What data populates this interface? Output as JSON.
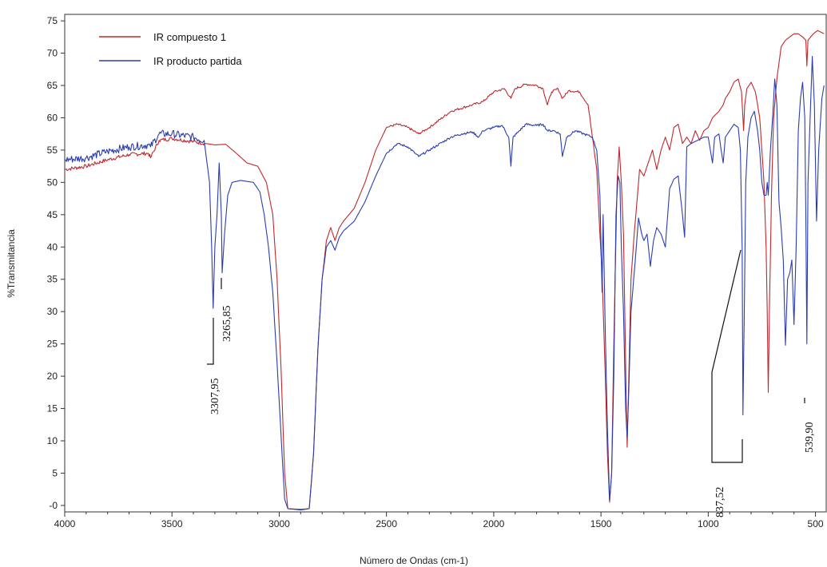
{
  "chart_data": {
    "type": "line",
    "xlabel": "Número de Ondas (cm-1)",
    "ylabel": "%Transmitancia",
    "xlim": [
      4000,
      450
    ],
    "ylim": [
      -1,
      76
    ],
    "x_ticks": [
      4000,
      3500,
      3000,
      2500,
      2000,
      1500,
      1000,
      500
    ],
    "x_tick_labels": [
      "4000",
      "3500",
      "3000",
      "2500",
      "2000",
      "1500",
      "1000",
      "500"
    ],
    "y_ticks": [
      0,
      5,
      10,
      15,
      20,
      25,
      30,
      35,
      40,
      45,
      50,
      55,
      60,
      65,
      70,
      75
    ],
    "y_tick_labels": [
      "-0",
      "5",
      "10",
      "15",
      "20",
      "25",
      "30",
      "35",
      "40",
      "45",
      "50",
      "55",
      "60",
      "65",
      "70",
      "75"
    ],
    "grid": false,
    "legend_position": "top-left",
    "series": [
      {
        "name": "IR compuesto 1",
        "color": "#c0282d",
        "points": [
          [
            4000,
            52
          ],
          [
            3900,
            52.5
          ],
          [
            3800,
            53.5
          ],
          [
            3700,
            54.3
          ],
          [
            3610,
            54.5
          ],
          [
            3600,
            53.8
          ],
          [
            3560,
            56.5
          ],
          [
            3500,
            56.8
          ],
          [
            3400,
            56.3
          ],
          [
            3300,
            55.8
          ],
          [
            3250,
            55.9
          ],
          [
            3200,
            54.5
          ],
          [
            3150,
            53
          ],
          [
            3100,
            52.5
          ],
          [
            3060,
            50
          ],
          [
            3030,
            45
          ],
          [
            3010,
            35
          ],
          [
            2990,
            20
          ],
          [
            2975,
            5
          ],
          [
            2960,
            -0.5
          ],
          [
            2900,
            -0.6
          ],
          [
            2860,
            -0.5
          ],
          [
            2840,
            8
          ],
          [
            2820,
            24
          ],
          [
            2800,
            35
          ],
          [
            2780,
            41
          ],
          [
            2760,
            43
          ],
          [
            2740,
            41
          ],
          [
            2720,
            43
          ],
          [
            2700,
            44
          ],
          [
            2650,
            46
          ],
          [
            2600,
            50
          ],
          [
            2550,
            55
          ],
          [
            2500,
            58.5
          ],
          [
            2450,
            59
          ],
          [
            2400,
            58.5
          ],
          [
            2350,
            57.5
          ],
          [
            2300,
            58.5
          ],
          [
            2200,
            61
          ],
          [
            2100,
            62
          ],
          [
            2050,
            62.5
          ],
          [
            2000,
            64
          ],
          [
            1950,
            64.5
          ],
          [
            1920,
            63
          ],
          [
            1900,
            64.5
          ],
          [
            1850,
            65.2
          ],
          [
            1800,
            65
          ],
          [
            1770,
            64.5
          ],
          [
            1750,
            62
          ],
          [
            1730,
            64
          ],
          [
            1700,
            64.5
          ],
          [
            1680,
            63
          ],
          [
            1650,
            64.2
          ],
          [
            1600,
            64
          ],
          [
            1560,
            62
          ],
          [
            1540,
            57
          ],
          [
            1520,
            52
          ],
          [
            1505,
            42
          ],
          [
            1495,
            36
          ],
          [
            1480,
            20
          ],
          [
            1470,
            8
          ],
          [
            1460,
            0.5
          ],
          [
            1450,
            5
          ],
          [
            1440,
            25
          ],
          [
            1425,
            50
          ],
          [
            1415,
            55.5
          ],
          [
            1405,
            50
          ],
          [
            1395,
            42
          ],
          [
            1385,
            22
          ],
          [
            1378,
            9
          ],
          [
            1370,
            20
          ],
          [
            1360,
            35
          ],
          [
            1345,
            42
          ],
          [
            1330,
            48
          ],
          [
            1320,
            52
          ],
          [
            1300,
            51
          ],
          [
            1280,
            53
          ],
          [
            1260,
            55
          ],
          [
            1240,
            52
          ],
          [
            1220,
            55
          ],
          [
            1200,
            57
          ],
          [
            1180,
            55
          ],
          [
            1160,
            58.5
          ],
          [
            1140,
            59
          ],
          [
            1120,
            56
          ],
          [
            1100,
            57
          ],
          [
            1080,
            56
          ],
          [
            1060,
            58
          ],
          [
            1040,
            56.5
          ],
          [
            1020,
            58
          ],
          [
            1000,
            58.5
          ],
          [
            980,
            60
          ],
          [
            950,
            61
          ],
          [
            930,
            62
          ],
          [
            920,
            63
          ],
          [
            900,
            64
          ],
          [
            880,
            65.5
          ],
          [
            860,
            66
          ],
          [
            845,
            64
          ],
          [
            835,
            58
          ],
          [
            830,
            62
          ],
          [
            820,
            64.5
          ],
          [
            800,
            65.5
          ],
          [
            780,
            64
          ],
          [
            760,
            60
          ],
          [
            740,
            50
          ],
          [
            730,
            40
          ],
          [
            725,
            30
          ],
          [
            720,
            17.5
          ],
          [
            715,
            30
          ],
          [
            705,
            48
          ],
          [
            695,
            60
          ],
          [
            680,
            66
          ],
          [
            660,
            71
          ],
          [
            640,
            72
          ],
          [
            620,
            72.5
          ],
          [
            600,
            73
          ],
          [
            580,
            73
          ],
          [
            560,
            72.5
          ],
          [
            545,
            72
          ],
          [
            540,
            68
          ],
          [
            535,
            72
          ],
          [
            510,
            73
          ],
          [
            490,
            73.5
          ],
          [
            460,
            73
          ]
        ]
      },
      {
        "name": "IR producto partida",
        "color": "#2a3db0",
        "points": [
          [
            4000,
            53.5
          ],
          [
            3900,
            53.8
          ],
          [
            3800,
            54.8
          ],
          [
            3700,
            55.5
          ],
          [
            3610,
            55.8
          ],
          [
            3600,
            55.5
          ],
          [
            3560,
            57.5
          ],
          [
            3500,
            57.5
          ],
          [
            3400,
            57
          ],
          [
            3350,
            56.5
          ],
          [
            3325,
            50
          ],
          [
            3315,
            40
          ],
          [
            3308,
            30.5
          ],
          [
            3300,
            40
          ],
          [
            3290,
            45
          ],
          [
            3280,
            53
          ],
          [
            3270,
            45
          ],
          [
            3266,
            36
          ],
          [
            3255,
            42
          ],
          [
            3240,
            48
          ],
          [
            3220,
            50
          ],
          [
            3180,
            50.3
          ],
          [
            3120,
            50
          ],
          [
            3090,
            48.5
          ],
          [
            3070,
            45
          ],
          [
            3050,
            40
          ],
          [
            3030,
            33
          ],
          [
            3010,
            22
          ],
          [
            2990,
            10
          ],
          [
            2975,
            1
          ],
          [
            2960,
            -0.5
          ],
          [
            2900,
            -0.7
          ],
          [
            2860,
            -0.5
          ],
          [
            2840,
            8
          ],
          [
            2820,
            24
          ],
          [
            2800,
            35
          ],
          [
            2780,
            40
          ],
          [
            2760,
            41
          ],
          [
            2740,
            39.5
          ],
          [
            2720,
            41.5
          ],
          [
            2700,
            42.5
          ],
          [
            2650,
            44
          ],
          [
            2600,
            47
          ],
          [
            2550,
            51
          ],
          [
            2500,
            54.5
          ],
          [
            2450,
            56
          ],
          [
            2400,
            55.5
          ],
          [
            2350,
            54
          ],
          [
            2300,
            55
          ],
          [
            2200,
            57
          ],
          [
            2150,
            57.5
          ],
          [
            2100,
            57.8
          ],
          [
            2070,
            57
          ],
          [
            2050,
            58
          ],
          [
            2000,
            58.5
          ],
          [
            1960,
            58.8
          ],
          [
            1930,
            57
          ],
          [
            1920,
            52.5
          ],
          [
            1910,
            57
          ],
          [
            1880,
            58
          ],
          [
            1850,
            59
          ],
          [
            1800,
            58.8
          ],
          [
            1770,
            59
          ],
          [
            1750,
            58
          ],
          [
            1720,
            58
          ],
          [
            1690,
            57.5
          ],
          [
            1680,
            54
          ],
          [
            1660,
            57
          ],
          [
            1620,
            58
          ],
          [
            1580,
            57.5
          ],
          [
            1540,
            57
          ],
          [
            1520,
            55
          ],
          [
            1505,
            48
          ],
          [
            1495,
            33
          ],
          [
            1490,
            45
          ],
          [
            1480,
            27
          ],
          [
            1470,
            12
          ],
          [
            1460,
            0.8
          ],
          [
            1450,
            5
          ],
          [
            1440,
            20
          ],
          [
            1430,
            45
          ],
          [
            1420,
            51
          ],
          [
            1412,
            50
          ],
          [
            1405,
            40
          ],
          [
            1395,
            30
          ],
          [
            1385,
            15
          ],
          [
            1378,
            10.5
          ],
          [
            1370,
            18
          ],
          [
            1360,
            30
          ],
          [
            1340,
            38
          ],
          [
            1325,
            44.5
          ],
          [
            1310,
            42
          ],
          [
            1300,
            41
          ],
          [
            1285,
            42
          ],
          [
            1270,
            37
          ],
          [
            1255,
            41
          ],
          [
            1240,
            43
          ],
          [
            1220,
            42
          ],
          [
            1200,
            40
          ],
          [
            1180,
            49
          ],
          [
            1160,
            50.5
          ],
          [
            1140,
            51
          ],
          [
            1120,
            45
          ],
          [
            1110,
            41.5
          ],
          [
            1100,
            55.5
          ],
          [
            1080,
            56
          ],
          [
            1050,
            56.5
          ],
          [
            1020,
            57
          ],
          [
            1000,
            57
          ],
          [
            990,
            55
          ],
          [
            980,
            53
          ],
          [
            970,
            57
          ],
          [
            950,
            57.5
          ],
          [
            940,
            55
          ],
          [
            930,
            53
          ],
          [
            920,
            57
          ],
          [
            900,
            58
          ],
          [
            880,
            59
          ],
          [
            860,
            58.5
          ],
          [
            850,
            55
          ],
          [
            842,
            40
          ],
          [
            838,
            14
          ],
          [
            832,
            30
          ],
          [
            825,
            50
          ],
          [
            815,
            57
          ],
          [
            800,
            60
          ],
          [
            785,
            61
          ],
          [
            770,
            58
          ],
          [
            760,
            55
          ],
          [
            750,
            50
          ],
          [
            740,
            48
          ],
          [
            730,
            48
          ],
          [
            725,
            50
          ],
          [
            720,
            48
          ],
          [
            710,
            55
          ],
          [
            700,
            60
          ],
          [
            690,
            66
          ],
          [
            680,
            62
          ],
          [
            670,
            47
          ],
          [
            660,
            43
          ],
          [
            650,
            38
          ],
          [
            640,
            24.8
          ],
          [
            630,
            35
          ],
          [
            620,
            36
          ],
          [
            610,
            38
          ],
          [
            600,
            28
          ],
          [
            590,
            40
          ],
          [
            580,
            58
          ],
          [
            570,
            63
          ],
          [
            560,
            65.5
          ],
          [
            550,
            60
          ],
          [
            545,
            45
          ],
          [
            540,
            25
          ],
          [
            535,
            50
          ],
          [
            525,
            60
          ],
          [
            515,
            69.5
          ],
          [
            505,
            62
          ],
          [
            495,
            44
          ],
          [
            485,
            55
          ],
          [
            470,
            63
          ],
          [
            460,
            65
          ]
        ]
      }
    ],
    "annotations": [
      {
        "label": "3307,95"
      },
      {
        "label": "3265,85"
      },
      {
        "label": "837,52"
      },
      {
        "label": "539,90"
      }
    ]
  }
}
